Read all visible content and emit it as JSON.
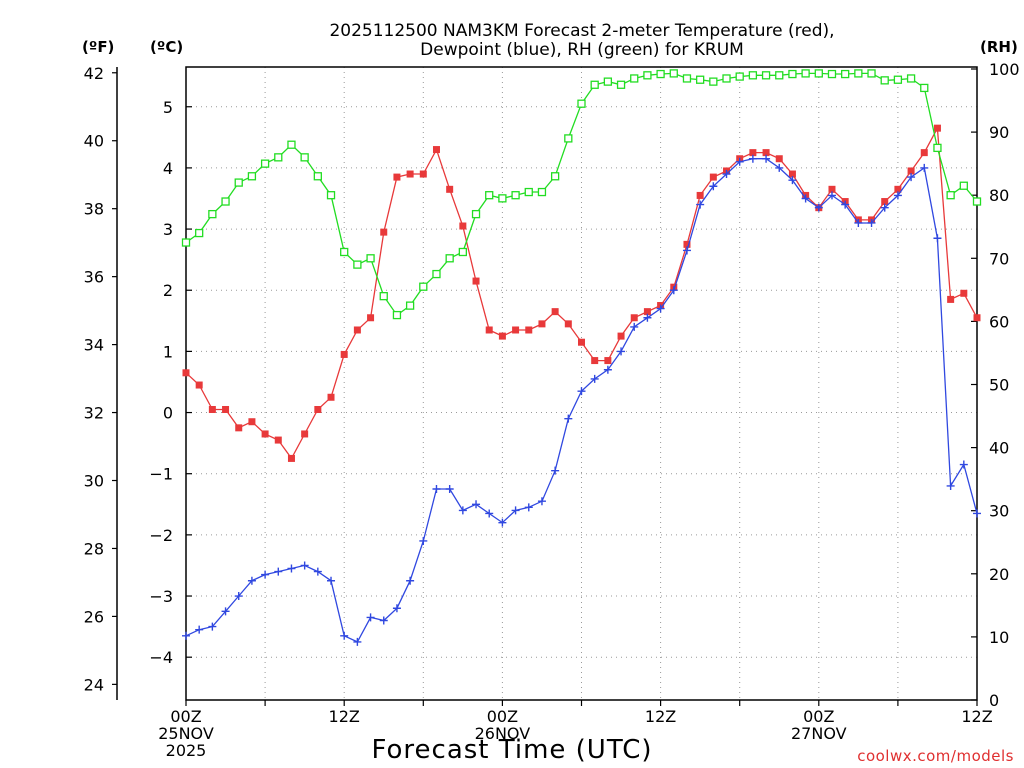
{
  "chart_data": {
    "type": "line",
    "title_lines": [
      "2025112500 NAM3KM Forecast 2-meter Temperature (red),",
      "Dewpoint (blue), RH (green) for KRUM"
    ],
    "xlabel": "Forecast Time (UTC)",
    "credit": "coolwx.com/models",
    "units": {
      "fahrenheit": "(ºF)",
      "celsius": "(ºC)",
      "rh": "(RH)"
    },
    "xlim_hours": [
      0,
      60
    ],
    "ylim_celsius": [
      -4.7,
      5.65
    ],
    "rh_lim": [
      0,
      100
    ],
    "fahrenheit_ticks": [
      24,
      26,
      28,
      30,
      32,
      34,
      36,
      38,
      40,
      42
    ],
    "celsius_ticks": [
      -4,
      -3,
      -2,
      -1,
      0,
      1,
      2,
      3,
      4,
      5
    ],
    "rh_ticks": [
      0,
      10,
      20,
      30,
      40,
      50,
      60,
      70,
      80,
      90,
      100
    ],
    "x_ticks": [
      {
        "hour": 0,
        "lines": [
          "00Z",
          "25NOV",
          "2025"
        ]
      },
      {
        "hour": 12,
        "lines": [
          "12Z"
        ]
      },
      {
        "hour": 24,
        "lines": [
          "00Z",
          "26NOV"
        ]
      },
      {
        "hour": 36,
        "lines": [
          "12Z"
        ]
      },
      {
        "hour": 48,
        "lines": [
          "00Z",
          "27NOV"
        ]
      },
      {
        "hour": 60,
        "lines": [
          "12Z"
        ]
      }
    ],
    "x_hours": [
      0,
      1,
      2,
      3,
      4,
      5,
      6,
      7,
      8,
      9,
      10,
      11,
      12,
      13,
      14,
      15,
      16,
      17,
      18,
      19,
      20,
      21,
      22,
      23,
      24,
      25,
      26,
      27,
      28,
      29,
      30,
      31,
      32,
      33,
      34,
      35,
      36,
      37,
      38,
      39,
      40,
      41,
      42,
      43,
      44,
      45,
      46,
      47,
      48,
      49,
      50,
      51,
      52,
      53,
      54,
      55,
      56,
      57,
      58,
      59,
      60
    ],
    "series": [
      {
        "name": "2-meter Temperature",
        "unit": "C",
        "color": "#e8393a",
        "marker": "filled-square",
        "values": [
          0.65,
          0.45,
          0.05,
          0.05,
          -0.25,
          -0.15,
          -0.35,
          -0.45,
          -0.75,
          -0.35,
          0.05,
          0.25,
          0.95,
          1.35,
          1.55,
          2.95,
          3.85,
          3.9,
          3.9,
          4.3,
          3.65,
          3.05,
          2.15,
          1.35,
          1.25,
          1.35,
          1.35,
          1.45,
          1.65,
          1.45,
          1.15,
          0.85,
          0.85,
          1.25,
          1.55,
          1.65,
          1.75,
          2.05,
          2.75,
          3.55,
          3.85,
          3.95,
          4.15,
          4.25,
          4.25,
          4.15,
          3.9,
          3.55,
          3.35,
          3.65,
          3.45,
          3.15,
          3.15,
          3.45,
          3.65,
          3.95,
          4.25,
          4.65,
          1.85,
          1.95,
          1.55
        ]
      },
      {
        "name": "Dewpoint",
        "unit": "C",
        "color": "#3048e0",
        "marker": "plus",
        "values": [
          -3.65,
          -3.55,
          -3.5,
          -3.25,
          -3.0,
          -2.75,
          -2.65,
          -2.6,
          -2.55,
          -2.5,
          -2.6,
          -2.75,
          -3.65,
          -3.75,
          -3.35,
          -3.4,
          -3.2,
          -2.75,
          -2.1,
          -1.25,
          -1.25,
          -1.6,
          -1.5,
          -1.65,
          -1.8,
          -1.6,
          -1.55,
          -1.45,
          -0.95,
          -0.1,
          0.35,
          0.55,
          0.7,
          1.0,
          1.4,
          1.55,
          1.7,
          2.0,
          2.65,
          3.4,
          3.7,
          3.9,
          4.1,
          4.15,
          4.15,
          4.0,
          3.8,
          3.5,
          3.35,
          3.55,
          3.4,
          3.1,
          3.1,
          3.35,
          3.55,
          3.85,
          4.0,
          2.85,
          -1.2,
          -0.85,
          -1.65
        ]
      },
      {
        "name": "RH",
        "unit": "%",
        "color": "#22dd22",
        "marker": "open-square",
        "values": [
          72.5,
          74,
          77,
          79,
          82,
          83,
          85,
          86,
          88,
          86,
          83,
          80,
          71,
          69,
          70,
          64,
          61,
          62.5,
          65.5,
          67.5,
          70,
          71,
          77,
          80,
          79.5,
          80,
          80.5,
          80.5,
          83,
          89,
          94.5,
          97.5,
          98,
          97.5,
          98.5,
          99,
          99.2,
          99.3,
          98.5,
          98.3,
          98,
          98.5,
          98.8,
          99,
          99,
          99,
          99.2,
          99.3,
          99.3,
          99.2,
          99.2,
          99.3,
          99.3,
          98.2,
          98.3,
          98.5,
          97,
          87.5,
          80,
          81.5,
          79
        ]
      }
    ]
  }
}
